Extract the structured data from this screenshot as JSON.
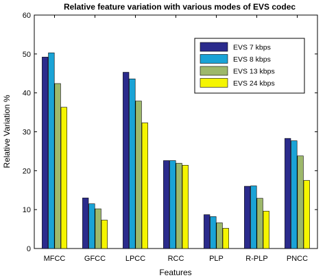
{
  "chart_data": {
    "type": "bar",
    "title": "Relative feature variation with various modes of EVS codec",
    "xlabel": "Features",
    "ylabel": "Relative Variation %",
    "ylim": [
      0,
      60
    ],
    "yticks": [
      "0",
      "10",
      "20",
      "30",
      "40",
      "50",
      "60"
    ],
    "categories": [
      "MFCC",
      "GFCC",
      "LPCC",
      "RCC",
      "PLP",
      "R-PLP",
      "PNCC"
    ],
    "series": [
      {
        "name": "EVS 7 kbps",
        "color": "#2b2b8c",
        "values": [
          49.2,
          13.0,
          45.3,
          22.6,
          8.7,
          16.0,
          28.3
        ]
      },
      {
        "name": "EVS 8 kbps",
        "color": "#1aa3d6",
        "values": [
          50.3,
          11.5,
          43.6,
          22.6,
          8.2,
          16.1,
          27.7
        ]
      },
      {
        "name": "EVS 13 kbps",
        "color": "#9db86b",
        "values": [
          42.4,
          10.2,
          37.9,
          21.9,
          6.6,
          12.9,
          23.8
        ]
      },
      {
        "name": "EVS 24 kbps",
        "color": "#f5f500",
        "values": [
          36.3,
          7.3,
          32.3,
          21.4,
          5.2,
          9.6,
          17.5
        ]
      }
    ],
    "legend_position": "top-right",
    "grid": false
  }
}
